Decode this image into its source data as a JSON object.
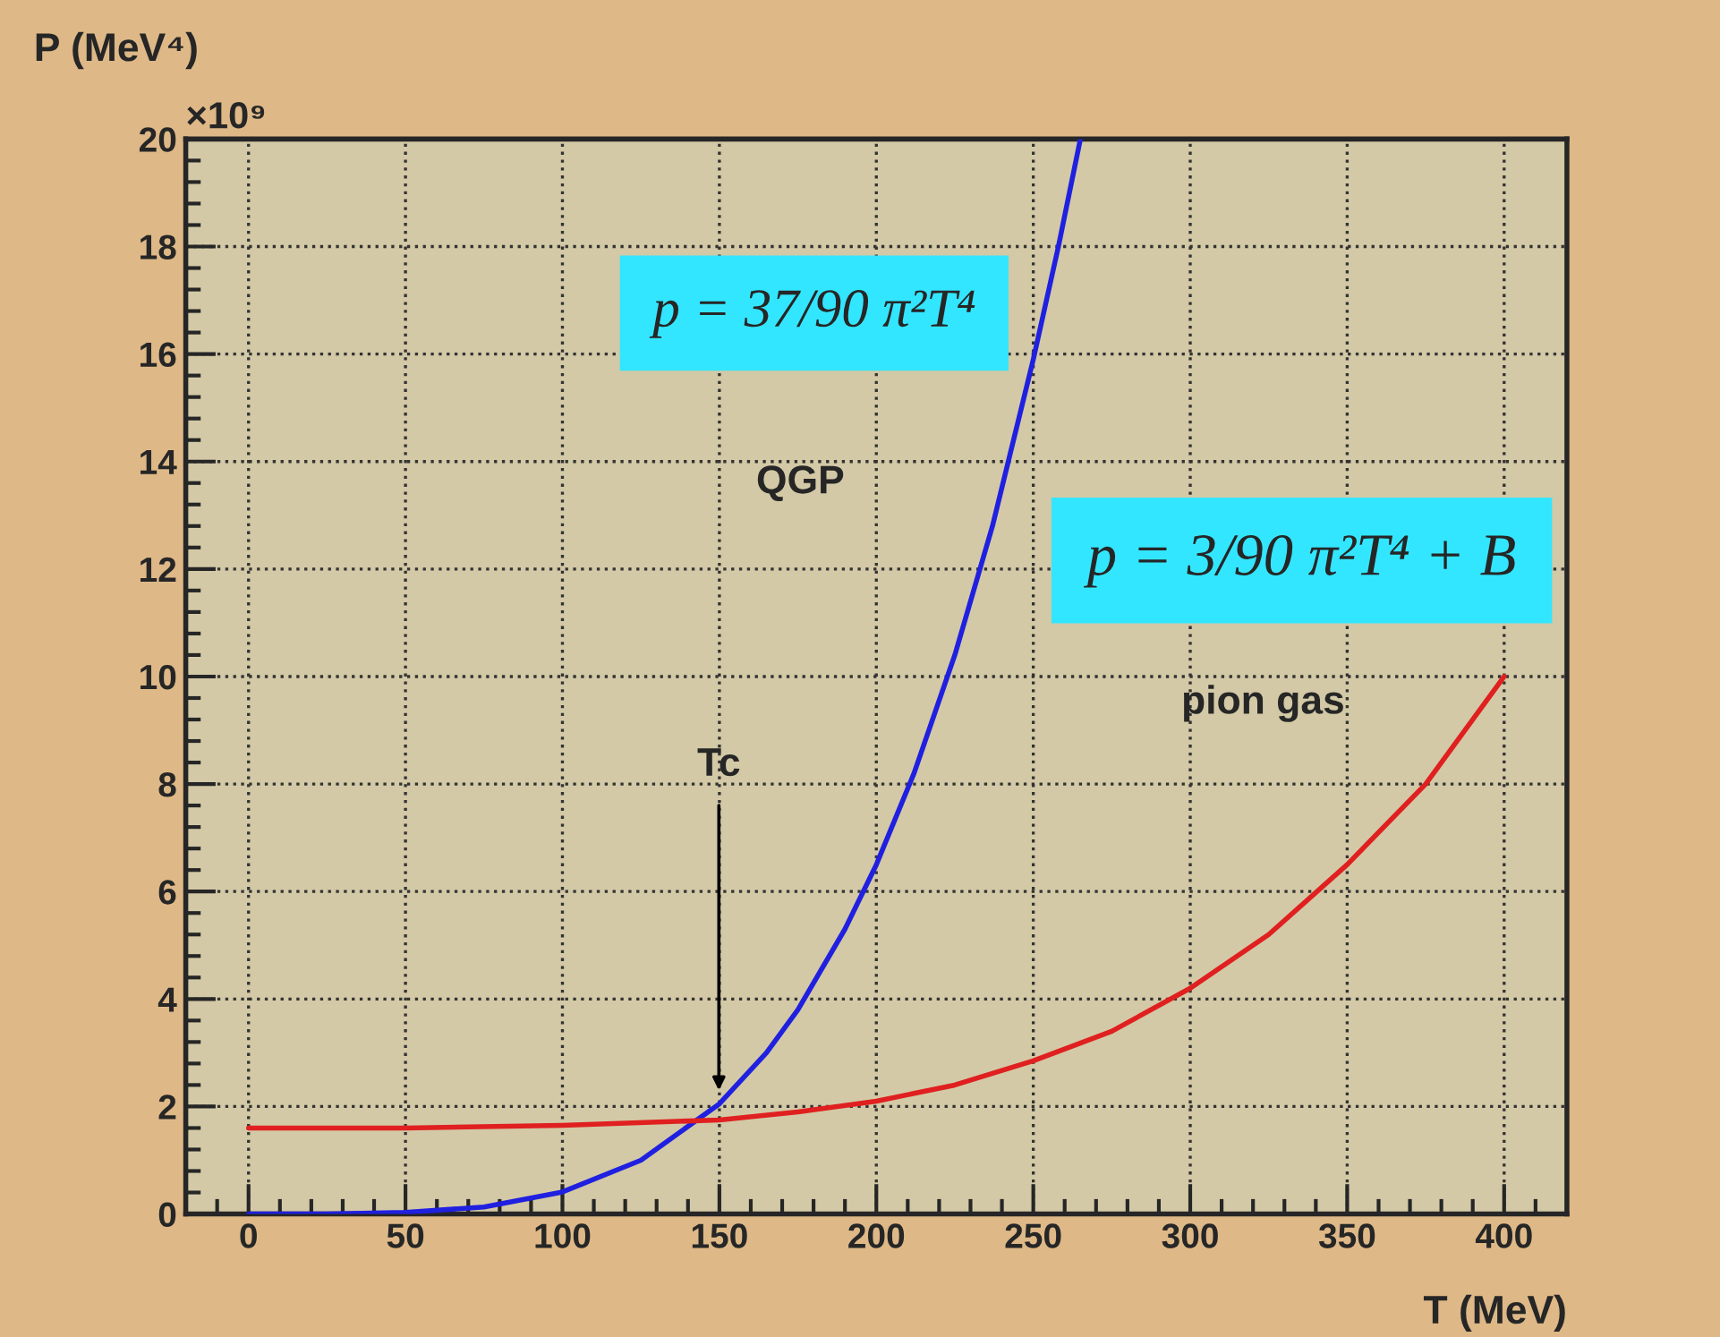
{
  "chart_data": {
    "type": "line",
    "xlabel": "T (MeV)",
    "ylabel": "P (MeV⁴)",
    "xlim": [
      -20,
      420
    ],
    "xticks": [
      0,
      50,
      100,
      150,
      200,
      250,
      300,
      350,
      400
    ],
    "ylim": [
      0,
      20
    ],
    "yticks": [
      0,
      2,
      4,
      6,
      8,
      10,
      12,
      14,
      16,
      18,
      20
    ],
    "grid": true,
    "line_style": "solid",
    "series": [
      {
        "color": "#2020e0",
        "x": [
          0,
          25,
          50,
          75,
          100,
          125,
          150,
          165,
          175,
          190,
          200,
          212,
          225,
          237,
          250,
          258,
          265
        ],
        "values": [
          0,
          0.0,
          0.03,
          0.13,
          0.41,
          1.0,
          2.05,
          3.0,
          3.8,
          5.3,
          6.5,
          8.2,
          10.4,
          12.8,
          15.9,
          18.0,
          20
        ]
      },
      {
        "color": "#e02020",
        "x": [
          0,
          50,
          100,
          150,
          175,
          200,
          225,
          250,
          275,
          300,
          325,
          350,
          375,
          400
        ],
        "values": [
          1.6,
          1.6,
          1.65,
          1.75,
          1.9,
          2.1,
          2.4,
          2.85,
          3.4,
          4.2,
          5.2,
          6.5,
          8.0,
          10
        ]
      }
    ],
    "annotations": [
      "×10⁹",
      "p = 37/90 π²T⁴",
      "QGP",
      "p = 3/90 π²T⁴ + B",
      "pion gas",
      "Tc"
    ]
  }
}
